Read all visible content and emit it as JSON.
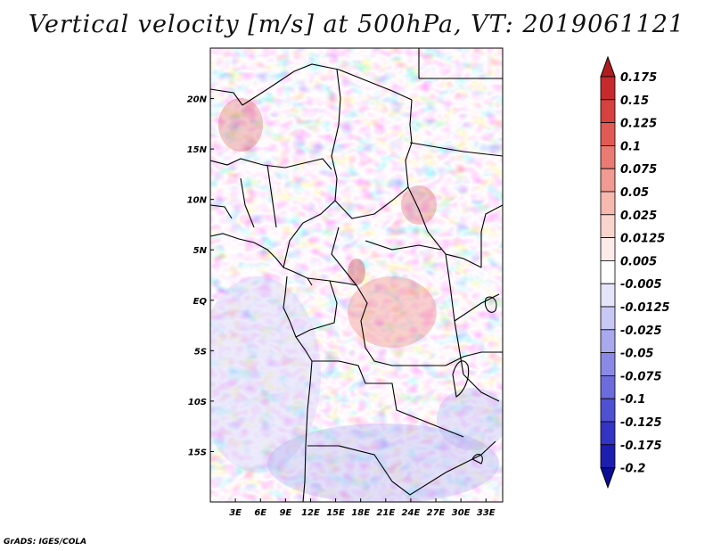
{
  "title": "Vertical velocity [m/s] at 500hPa, VT: 2019061121",
  "credit": "GrADS: IGES/COLA",
  "map": {
    "lon_range": [
      0,
      35
    ],
    "lat_range": [
      -20,
      25
    ],
    "lat_ticks": [
      {
        "value": 20,
        "label": "20N"
      },
      {
        "value": 15,
        "label": "15N"
      },
      {
        "value": 10,
        "label": "10N"
      },
      {
        "value": 5,
        "label": "5N"
      },
      {
        "value": 0,
        "label": "EQ"
      },
      {
        "value": -5,
        "label": "5S"
      },
      {
        "value": -10,
        "label": "10S"
      },
      {
        "value": -15,
        "label": "15S"
      }
    ],
    "lon_ticks": [
      {
        "value": 3,
        "label": "3E"
      },
      {
        "value": 6,
        "label": "6E"
      },
      {
        "value": 9,
        "label": "9E"
      },
      {
        "value": 12,
        "label": "12E"
      },
      {
        "value": 15,
        "label": "15E"
      },
      {
        "value": 18,
        "label": "18E"
      },
      {
        "value": 21,
        "label": "21E"
      },
      {
        "value": 24,
        "label": "24E"
      },
      {
        "value": 27,
        "label": "27E"
      },
      {
        "value": 30,
        "label": "30E"
      },
      {
        "value": 33,
        "label": "33E"
      }
    ]
  },
  "colorbar": {
    "levels": [
      "0.175",
      "0.15",
      "0.125",
      "0.1",
      "0.075",
      "0.05",
      "0.025",
      "0.0125",
      "0.005",
      "-0.005",
      "-0.0125",
      "-0.025",
      "-0.05",
      "-0.075",
      "-0.1",
      "-0.125",
      "-0.175",
      "-0.2"
    ],
    "colors": [
      "#b01c20",
      "#c62a2d",
      "#d6403e",
      "#e25a55",
      "#ea7b72",
      "#f09a91",
      "#f5b9b0",
      "#f9d4cd",
      "#fcebe8",
      "#ffffff",
      "#e4e4fb",
      "#c8c8f5",
      "#a9a9ee",
      "#8a8ae6",
      "#6c6cdc",
      "#5050d2",
      "#3434c4",
      "#1d1db0",
      "#0c0c98"
    ]
  }
}
